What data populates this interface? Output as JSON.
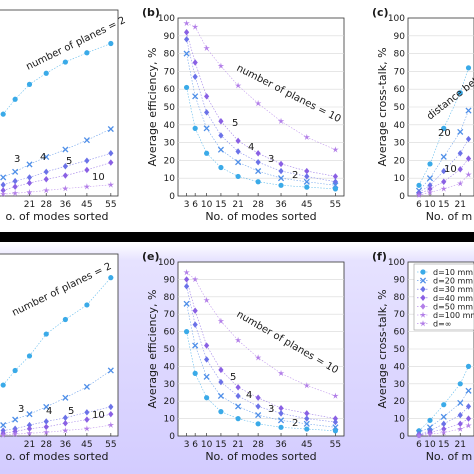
{
  "figure": {
    "band_top_color": "#ffffff",
    "band_bottom_color": "#d3ccff",
    "separator_color": "#000000"
  },
  "colors": {
    "p2": "#3aaae8",
    "p3": "#4f8fe8",
    "p4": "#6b72e8",
    "p5": "#8a60e4",
    "p10": "#b27ee8",
    "grid": "#d8d8d8",
    "line": "#9fbde0"
  },
  "chart_data": [
    {
      "id": "a-top",
      "type": "scatter",
      "title": "",
      "xlabel": "o. of modes sorted",
      "ylabel": "",
      "xticks": [
        "21",
        "28",
        "36",
        "45",
        "55"
      ],
      "yticks": [],
      "annotations": [
        {
          "text": "number of planes = 2"
        },
        {
          "text": "3"
        },
        {
          "text": "4"
        },
        {
          "text": "5"
        },
        {
          "text": "10"
        }
      ],
      "series": [
        {
          "color_key": "p2",
          "x": [
            10,
            15,
            21,
            28,
            36,
            45,
            55
          ],
          "y": [
            44,
            52,
            60,
            66,
            72,
            77,
            82
          ]
        },
        {
          "color_key": "p3",
          "x": [
            10,
            15,
            21,
            28,
            36,
            45,
            55
          ],
          "y": [
            10,
            13,
            17,
            21,
            25,
            30,
            36
          ]
        },
        {
          "color_key": "p4",
          "x": [
            10,
            15,
            21,
            28,
            36,
            45,
            55
          ],
          "y": [
            6,
            8,
            10,
            13,
            16,
            19,
            23
          ]
        },
        {
          "color_key": "p5",
          "x": [
            10,
            15,
            21,
            28,
            36,
            45,
            55
          ],
          "y": [
            3,
            5,
            7,
            9,
            11,
            14,
            18
          ]
        },
        {
          "color_key": "p10",
          "x": [
            10,
            15,
            21,
            28,
            36,
            45,
            55
          ],
          "y": [
            1,
            1.5,
            2,
            3,
            4,
            5,
            6
          ]
        }
      ],
      "xlim": [
        7,
        58
      ],
      "ylim": [
        0,
        100
      ]
    },
    {
      "id": "b",
      "type": "scatter",
      "label": "(b)",
      "title": "",
      "xlabel": "No. of modes sorted",
      "ylabel": "Average efficiency, %",
      "xticks": [
        "3",
        "6",
        "10",
        "15",
        "21",
        "28",
        "36",
        "45",
        "55"
      ],
      "yticks": [
        "0",
        "10",
        "20",
        "30",
        "40",
        "50",
        "60",
        "70",
        "80",
        "90",
        "100"
      ],
      "annotations": [
        {
          "text": "number of planes = 10"
        },
        {
          "text": "5"
        },
        {
          "text": "4"
        },
        {
          "text": "3"
        },
        {
          "text": "2"
        }
      ],
      "series": [
        {
          "color_key": "p10",
          "x": [
            3,
            6,
            10,
            15,
            21,
            28,
            36,
            45,
            55
          ],
          "y": [
            97,
            95,
            83,
            73,
            62,
            52,
            42,
            33,
            26
          ]
        },
        {
          "color_key": "p5",
          "x": [
            3,
            6,
            10,
            15,
            21,
            28,
            36,
            45,
            55
          ],
          "y": [
            92,
            75,
            56,
            42,
            31,
            24,
            18,
            14,
            11
          ]
        },
        {
          "color_key": "p4",
          "x": [
            3,
            6,
            10,
            15,
            21,
            28,
            36,
            45,
            55
          ],
          "y": [
            88,
            67,
            47,
            34,
            25,
            19,
            14,
            11,
            8
          ]
        },
        {
          "color_key": "p3",
          "x": [
            3,
            6,
            10,
            15,
            21,
            28,
            36,
            45,
            55
          ],
          "y": [
            80,
            56,
            38,
            26,
            19,
            14,
            10,
            8,
            6
          ]
        },
        {
          "color_key": "p2",
          "x": [
            3,
            6,
            10,
            15,
            21,
            28,
            36,
            45,
            55
          ],
          "y": [
            61,
            38,
            24,
            16,
            11,
            8,
            6,
            5,
            4
          ]
        }
      ],
      "xlim": [
        0,
        58
      ],
      "ylim": [
        0,
        100
      ]
    },
    {
      "id": "c",
      "type": "scatter",
      "label": "(c)",
      "title": "",
      "xlabel": "No. of m",
      "ylabel": "Average cross-talk, %",
      "xticks": [
        "6",
        "10",
        "15",
        "21"
      ],
      "yticks": [
        "0",
        "10",
        "20",
        "30",
        "40",
        "50",
        "60",
        "70",
        "80",
        "90",
        "100"
      ],
      "annotations": [
        {
          "text": "distance between plane"
        },
        {
          "text": "20"
        },
        {
          "text": "10"
        }
      ],
      "series": [
        {
          "color_key": "p2",
          "x": [
            6,
            10,
            15,
            21,
            24
          ],
          "y": [
            6,
            18,
            38,
            58,
            72
          ]
        },
        {
          "color_key": "p3",
          "x": [
            6,
            10,
            15,
            21,
            24
          ],
          "y": [
            3,
            10,
            22,
            36,
            48
          ]
        },
        {
          "color_key": "p4",
          "x": [
            6,
            10,
            15,
            21,
            24
          ],
          "y": [
            2,
            6,
            14,
            24,
            32
          ]
        },
        {
          "color_key": "p5",
          "x": [
            6,
            10,
            15,
            21,
            24
          ],
          "y": [
            1,
            4,
            8,
            15,
            21
          ]
        },
        {
          "color_key": "p10",
          "x": [
            6,
            10,
            15,
            21,
            24
          ],
          "y": [
            0.5,
            2,
            4,
            7,
            12
          ]
        }
      ],
      "xlim": [
        2,
        26
      ],
      "ylim": [
        0,
        100
      ]
    },
    {
      "id": "d-bottom",
      "type": "scatter",
      "title": "",
      "xlabel": "o. of modes sorted",
      "ylabel": "",
      "xticks": [
        "21",
        "28",
        "36",
        "45",
        "55"
      ],
      "yticks": [],
      "annotations": [
        {
          "text": "number of planes = 2"
        },
        {
          "text": "3"
        },
        {
          "text": "4"
        },
        {
          "text": "5"
        },
        {
          "text": "10"
        }
      ],
      "series": [
        {
          "color_key": "p2",
          "x": [
            10,
            15,
            21,
            28,
            36,
            45,
            55
          ],
          "y": [
            28,
            36,
            44,
            56,
            64,
            72,
            87
          ]
        },
        {
          "color_key": "p3",
          "x": [
            10,
            15,
            21,
            28,
            36,
            45,
            55
          ],
          "y": [
            6,
            9,
            12,
            16,
            21,
            27,
            36
          ]
        },
        {
          "color_key": "p4",
          "x": [
            10,
            15,
            21,
            28,
            36,
            45,
            55
          ],
          "y": [
            3,
            4,
            6,
            8,
            10,
            13,
            16
          ]
        },
        {
          "color_key": "p5",
          "x": [
            10,
            15,
            21,
            28,
            36,
            45,
            55
          ],
          "y": [
            1.5,
            2.5,
            4,
            5,
            7,
            9,
            12
          ]
        },
        {
          "color_key": "p10",
          "x": [
            10,
            15,
            21,
            28,
            36,
            45,
            55
          ],
          "y": [
            0.5,
            1,
            1.5,
            2,
            3,
            4,
            6
          ]
        }
      ],
      "xlim": [
        7,
        58
      ],
      "ylim": [
        0,
        100
      ]
    },
    {
      "id": "e",
      "type": "scatter",
      "label": "(e)",
      "title": "",
      "xlabel": "No. of modes sorted",
      "ylabel": "Average efficiency, %",
      "xticks": [
        "3",
        "6",
        "10",
        "15",
        "21",
        "28",
        "36",
        "45",
        "55"
      ],
      "yticks": [
        "0",
        "10",
        "20",
        "30",
        "40",
        "50",
        "60",
        "70",
        "80",
        "90",
        "100"
      ],
      "annotations": [
        {
          "text": "number of planes = 10"
        },
        {
          "text": "5"
        },
        {
          "text": "4"
        },
        {
          "text": "3"
        },
        {
          "text": "2"
        }
      ],
      "series": [
        {
          "color_key": "p10",
          "x": [
            3,
            6,
            10,
            15,
            21,
            28,
            36,
            45,
            55
          ],
          "y": [
            94,
            90,
            78,
            66,
            55,
            45,
            36,
            29,
            23
          ]
        },
        {
          "color_key": "p5",
          "x": [
            3,
            6,
            10,
            15,
            21,
            28,
            36,
            45,
            55
          ],
          "y": [
            90,
            72,
            52,
            38,
            28,
            22,
            16,
            13,
            10
          ]
        },
        {
          "color_key": "p4",
          "x": [
            3,
            6,
            10,
            15,
            21,
            28,
            36,
            45,
            55
          ],
          "y": [
            86,
            64,
            44,
            31,
            23,
            17,
            13,
            10,
            8
          ]
        },
        {
          "color_key": "p3",
          "x": [
            3,
            6,
            10,
            15,
            21,
            28,
            36,
            45,
            55
          ],
          "y": [
            76,
            52,
            34,
            23,
            17,
            12,
            9,
            7,
            5
          ]
        },
        {
          "color_key": "p2",
          "x": [
            3,
            6,
            10,
            15,
            21,
            28,
            36,
            45,
            55
          ],
          "y": [
            60,
            36,
            22,
            14,
            10,
            7,
            5,
            4,
            3
          ]
        }
      ],
      "xlim": [
        0,
        58
      ],
      "ylim": [
        0,
        100
      ]
    },
    {
      "id": "f",
      "type": "scatter",
      "label": "(f)",
      "title": "",
      "xlabel": "No. of m",
      "ylabel": "Average cross-talk, %",
      "xticks": [
        "6",
        "10",
        "15",
        "21"
      ],
      "yticks": [
        "0",
        "10",
        "20",
        "30",
        "40",
        "50",
        "60",
        "70",
        "80",
        "90",
        "100"
      ],
      "legend": {
        "placement": "top-right",
        "entries": [
          "d=10 mm",
          "d=20 mm",
          "d=30 mm",
          "d=40 mm",
          "d=50 mm",
          "d=100 mm",
          "d=∞"
        ]
      },
      "series": [
        {
          "color_key": "p2",
          "x": [
            6,
            10,
            15,
            21,
            24
          ],
          "y": [
            3,
            9,
            18,
            30,
            40
          ]
        },
        {
          "color_key": "p3",
          "x": [
            6,
            10,
            15,
            21,
            24
          ],
          "y": [
            2,
            5,
            11,
            19,
            26
          ]
        },
        {
          "color_key": "p4",
          "x": [
            6,
            10,
            15,
            21,
            24
          ],
          "y": [
            1,
            3,
            7,
            12,
            17
          ]
        },
        {
          "color_key": "p5",
          "x": [
            6,
            10,
            15,
            21,
            24
          ],
          "y": [
            0.5,
            2,
            4,
            7,
            10
          ]
        },
        {
          "color_key": "p10",
          "x": [
            6,
            10,
            15,
            21,
            24
          ],
          "y": [
            0.3,
            1,
            2,
            4,
            6
          ]
        }
      ],
      "xlim": [
        2,
        26
      ],
      "ylim": [
        0,
        100
      ]
    }
  ]
}
